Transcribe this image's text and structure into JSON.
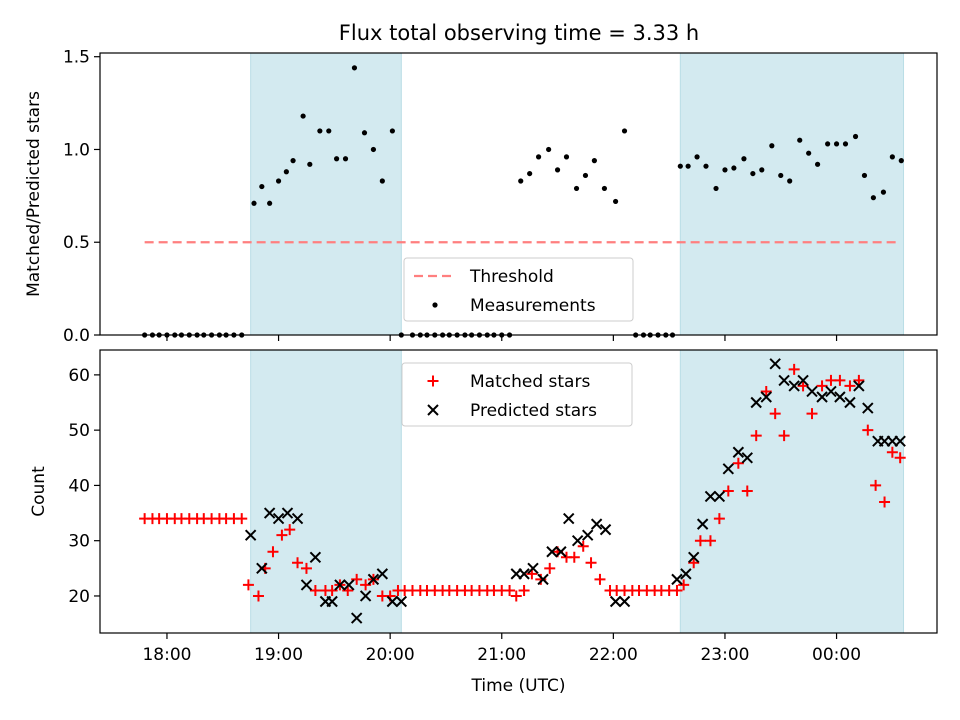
{
  "figure": {
    "title": "Flux total observing time = 3.33 h",
    "colors": {
      "shade": "#d3eaf0",
      "threshold": "#ff7f7f",
      "measurement": "#000000",
      "matched": "#ff0000",
      "predicted": "#000000"
    }
  },
  "chart_data": [
    {
      "type": "scatter",
      "panel": "top",
      "ylabel": "Matched/Predicted stars",
      "xlabel": "",
      "ylim": [
        0,
        1.52
      ],
      "yticks": [
        "0.0",
        "0.5",
        "1.0",
        "1.5"
      ],
      "xticks": [
        "18:00",
        "19:00",
        "20:00",
        "21:00",
        "22:00",
        "23:00",
        "00:00"
      ],
      "x_unit": "hours UTC (times after midnight written as 24+)",
      "xlim": [
        17.4,
        24.9
      ],
      "legend": {
        "position": "bottom-center",
        "entries": [
          "Threshold",
          "Measurements"
        ]
      },
      "shaded_spans": [
        [
          18.75,
          20.1
        ],
        [
          22.6,
          24.6
        ]
      ],
      "threshold": {
        "name": "Threshold",
        "value": 0.5,
        "x_range": [
          17.8,
          24.55
        ]
      },
      "series": [
        {
          "name": "Measurements",
          "marker": "dot",
          "x": [
            17.8,
            17.87,
            17.93,
            18.0,
            18.07,
            18.13,
            18.2,
            18.27,
            18.33,
            18.4,
            18.47,
            18.53,
            18.6,
            18.67,
            18.78,
            18.85,
            18.92,
            19.0,
            19.07,
            19.13,
            19.22,
            19.28,
            19.37,
            19.45,
            19.52,
            19.6,
            19.68,
            19.77,
            19.85,
            19.93,
            20.02,
            20.1,
            20.2,
            20.27,
            20.33,
            20.4,
            20.47,
            20.53,
            20.6,
            20.67,
            20.73,
            20.8,
            20.87,
            20.93,
            21.0,
            21.07,
            21.17,
            21.25,
            21.33,
            21.42,
            21.5,
            21.58,
            21.67,
            21.75,
            21.83,
            21.92,
            22.02,
            22.1,
            22.2,
            22.27,
            22.33,
            22.4,
            22.47,
            22.53,
            22.6,
            22.67,
            22.75,
            22.83,
            22.92,
            23.0,
            23.08,
            23.17,
            23.25,
            23.33,
            23.42,
            23.5,
            23.58,
            23.67,
            23.75,
            23.83,
            23.92,
            24.0,
            24.08,
            24.17,
            24.25,
            24.33,
            24.42,
            24.5,
            24.58
          ],
          "y": [
            0,
            0,
            0,
            0,
            0,
            0,
            0,
            0,
            0,
            0,
            0,
            0,
            0,
            0,
            0.71,
            0.8,
            0.71,
            0.83,
            0.88,
            0.94,
            1.18,
            0.92,
            1.1,
            1.1,
            0.95,
            0.95,
            1.44,
            1.09,
            1.0,
            0.83,
            1.1,
            0,
            0,
            0,
            0,
            0,
            0,
            0,
            0,
            0,
            0,
            0,
            0,
            0,
            0,
            0,
            0.83,
            0.87,
            0.96,
            1.0,
            0.89,
            0.96,
            0.79,
            0.86,
            0.94,
            0.79,
            0.72,
            1.1,
            0,
            0,
            0,
            0,
            0,
            0,
            0.91,
            0.91,
            0.96,
            0.91,
            0.79,
            0.89,
            0.9,
            0.95,
            0.87,
            0.89,
            1.02,
            0.86,
            0.83,
            1.05,
            0.98,
            0.92,
            1.03,
            1.03,
            1.03,
            1.07,
            0.86,
            0.74,
            0.77,
            0.96,
            0.94
          ]
        }
      ]
    },
    {
      "type": "scatter",
      "panel": "bottom",
      "ylabel": "Count",
      "xlabel": "Time (UTC)",
      "ylim": [
        13.3,
        64.5
      ],
      "yticks": [
        "20",
        "30",
        "40",
        "50",
        "60"
      ],
      "xticks": [
        "18:00",
        "19:00",
        "20:00",
        "21:00",
        "22:00",
        "23:00",
        "00:00"
      ],
      "x_unit": "hours UTC (times after midnight written as 24+)",
      "xlim": [
        17.4,
        24.9
      ],
      "legend": {
        "position": "top-center",
        "entries": [
          "Matched stars",
          "Predicted stars"
        ]
      },
      "shaded_spans": [
        [
          18.75,
          20.1
        ],
        [
          22.6,
          24.6
        ]
      ],
      "series": [
        {
          "name": "Matched stars",
          "marker": "plus",
          "x": [
            17.8,
            17.87,
            17.93,
            18.0,
            18.07,
            18.13,
            18.2,
            18.27,
            18.33,
            18.4,
            18.47,
            18.53,
            18.6,
            18.67,
            18.73,
            18.82,
            18.88,
            18.95,
            19.03,
            19.1,
            19.17,
            19.25,
            19.33,
            19.42,
            19.48,
            19.55,
            19.62,
            19.7,
            19.78,
            19.85,
            19.93,
            20.0,
            20.07,
            20.13,
            20.2,
            20.27,
            20.33,
            20.4,
            20.47,
            20.53,
            20.6,
            20.67,
            20.73,
            20.8,
            20.87,
            20.93,
            21.0,
            21.07,
            21.13,
            21.2,
            21.27,
            21.35,
            21.43,
            21.5,
            21.58,
            21.65,
            21.73,
            21.8,
            21.88,
            21.97,
            22.03,
            22.1,
            22.17,
            22.23,
            22.3,
            22.37,
            22.43,
            22.5,
            22.57,
            22.63,
            22.72,
            22.78,
            22.87,
            22.95,
            23.03,
            23.12,
            23.2,
            23.28,
            23.37,
            23.45,
            23.53,
            23.62,
            23.7,
            23.78,
            23.87,
            23.95,
            24.03,
            24.12,
            24.2,
            24.28,
            24.35,
            24.43,
            24.5,
            24.57
          ],
          "y": [
            34,
            34,
            34,
            34,
            34,
            34,
            34,
            34,
            34,
            34,
            34,
            34,
            34,
            34,
            22,
            20,
            25,
            28,
            31,
            32,
            26,
            25,
            21,
            21,
            21,
            22,
            21,
            23,
            22,
            23,
            20,
            20,
            21,
            21,
            21,
            21,
            21,
            21,
            21,
            21,
            21,
            21,
            21,
            21,
            21,
            21,
            21,
            21,
            20,
            21,
            24,
            23,
            25,
            28,
            27,
            27,
            29,
            26,
            23,
            21,
            21,
            21,
            21,
            21,
            21,
            21,
            21,
            21,
            21,
            22,
            26,
            30,
            30,
            34,
            39,
            44,
            39,
            49,
            57,
            53,
            49,
            61,
            58,
            53,
            58,
            59,
            59,
            58,
            59,
            50,
            40,
            37,
            46,
            45
          ]
        },
        {
          "name": "Predicted stars",
          "marker": "cross",
          "x": [
            18.75,
            18.85,
            18.92,
            19.0,
            19.08,
            19.17,
            19.25,
            19.33,
            19.42,
            19.48,
            19.55,
            19.63,
            19.7,
            19.78,
            19.85,
            19.93,
            20.02,
            20.1,
            21.13,
            21.2,
            21.28,
            21.37,
            21.45,
            21.53,
            21.6,
            21.68,
            21.77,
            21.85,
            21.93,
            22.02,
            22.1,
            22.57,
            22.65,
            22.72,
            22.8,
            22.87,
            22.95,
            23.03,
            23.12,
            23.2,
            23.28,
            23.37,
            23.45,
            23.53,
            23.62,
            23.7,
            23.78,
            23.87,
            23.95,
            24.03,
            24.12,
            24.2,
            24.28,
            24.37,
            24.43,
            24.5,
            24.57
          ],
          "y": [
            31,
            25,
            35,
            34,
            35,
            34,
            22,
            27,
            19,
            19,
            22,
            22,
            16,
            20,
            23,
            24,
            19,
            19,
            24,
            24,
            25,
            23,
            28,
            28,
            34,
            30,
            31,
            33,
            32,
            19,
            19,
            23,
            24,
            27,
            33,
            38,
            38,
            43,
            46,
            45,
            55,
            56,
            62,
            59,
            58,
            59,
            57,
            56,
            57,
            56,
            55,
            58,
            54,
            48,
            48,
            48,
            48
          ]
        }
      ]
    }
  ]
}
